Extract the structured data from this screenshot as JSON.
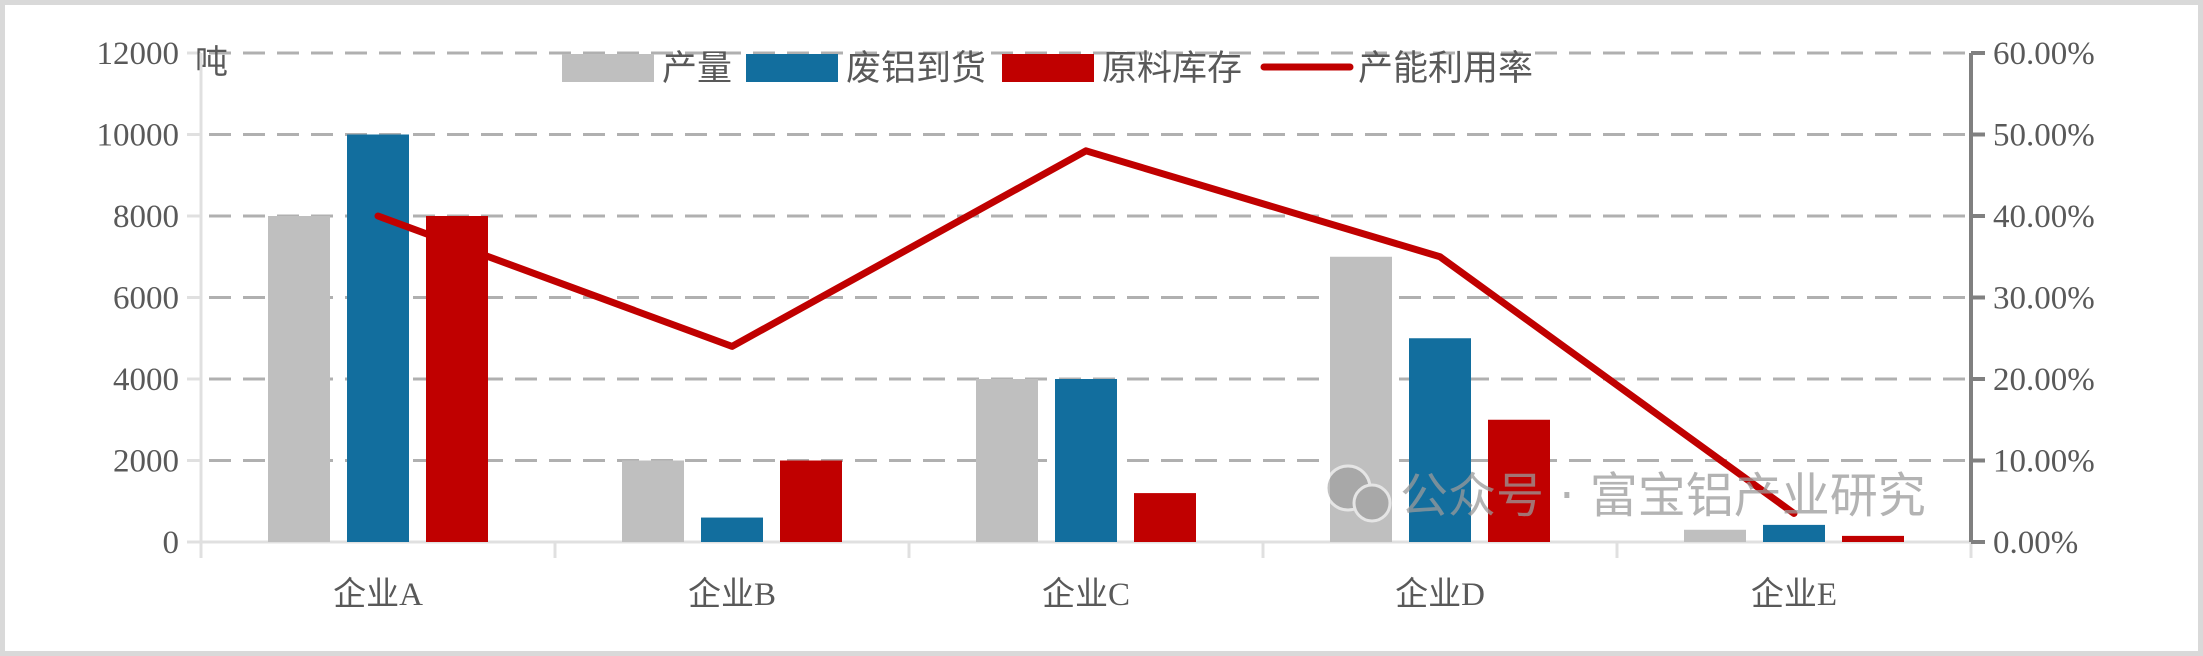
{
  "chart_data": {
    "type": "bar",
    "title": "",
    "categories": [
      "企业A",
      "企业B",
      "企业C",
      "企业D",
      "企业E"
    ],
    "series": [
      {
        "name": "产量",
        "kind": "bar",
        "axis": "left",
        "color": "#bfbfbf",
        "values": [
          8000,
          2000,
          4000,
          7000,
          300
        ]
      },
      {
        "name": "废铝到货",
        "kind": "bar",
        "axis": "left",
        "color": "#126e9e",
        "values": [
          10000,
          600,
          4000,
          5000,
          420
        ]
      },
      {
        "name": "原料库存",
        "kind": "bar",
        "axis": "left",
        "color": "#c00000",
        "values": [
          8000,
          2000,
          1200,
          3000,
          150
        ]
      },
      {
        "name": "产能利用率",
        "kind": "line",
        "axis": "right",
        "color": "#c00000",
        "values": [
          0.4,
          0.24,
          0.48,
          0.35,
          0.035
        ]
      }
    ],
    "ylabel": "吨",
    "ylim": [
      0,
      12000
    ],
    "yticks": [
      "0",
      "2000",
      "4000",
      "6000",
      "8000",
      "10000",
      "12000"
    ],
    "y2lim": [
      0,
      0.6
    ],
    "y2ticks": [
      "0.00%",
      "10.00%",
      "20.00%",
      "30.00%",
      "40.00%",
      "50.00%",
      "60.00%"
    ],
    "grid": true,
    "legend": "top-center"
  },
  "watermark": "公众号 · 富宝铝产业研究"
}
